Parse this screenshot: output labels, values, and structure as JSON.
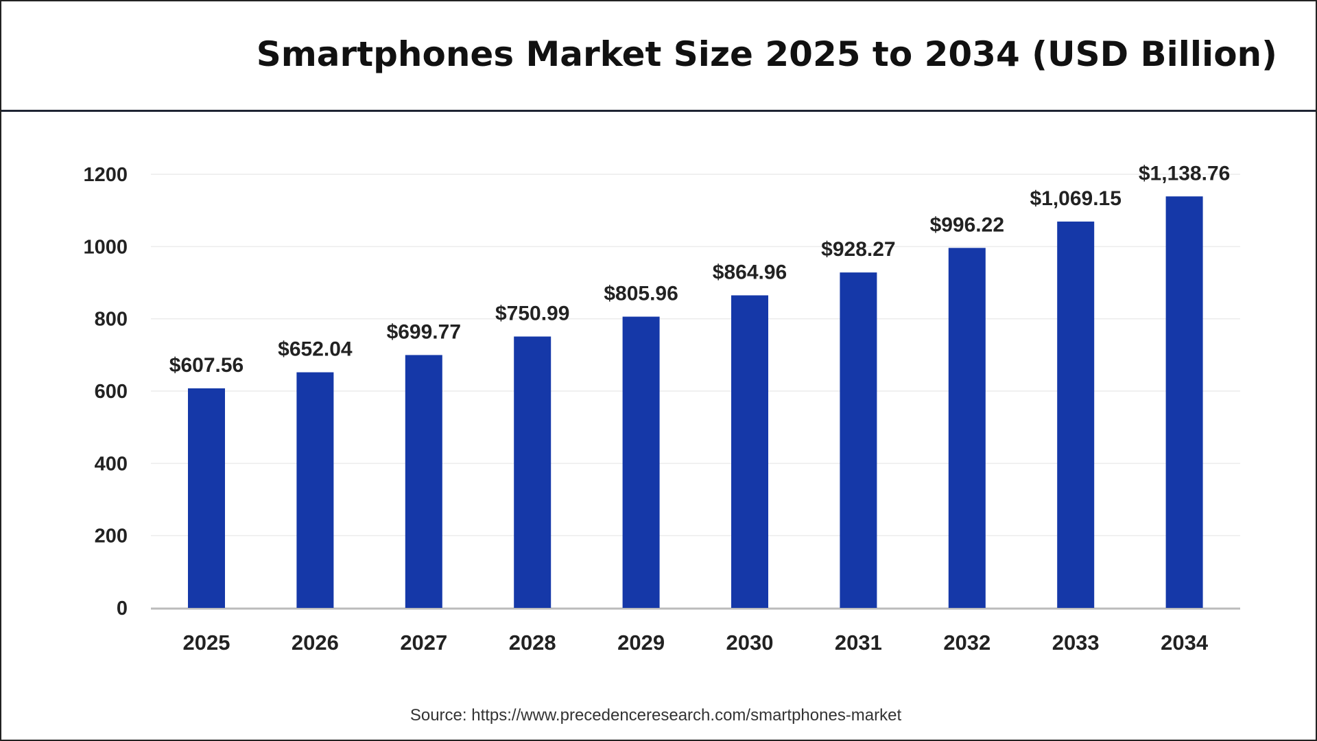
{
  "chart_data": {
    "type": "bar",
    "title": "Smartphones Market Size 2025 to 2034 (USD Billion)",
    "categories": [
      "2025",
      "2026",
      "2027",
      "2028",
      "2029",
      "2030",
      "2031",
      "2032",
      "2033",
      "2034"
    ],
    "values": [
      607.56,
      652.04,
      699.77,
      750.99,
      805.96,
      864.96,
      928.27,
      996.22,
      1069.15,
      1138.76
    ],
    "data_labels": [
      "$607.56",
      "$652.04",
      "$699.77",
      "$750.99",
      "$805.96",
      "$864.96",
      "$928.27",
      "$996.22",
      "$1,069.15",
      "$1,138.76"
    ],
    "yticks": [
      0,
      200,
      400,
      600,
      800,
      1000,
      1200
    ],
    "ylim": [
      0,
      1200
    ],
    "xlabel": "",
    "ylabel": "",
    "grid": true,
    "bar_color": "#1538a8",
    "source": "Source: https://www.precedenceresearch.com/smartphones-market"
  }
}
